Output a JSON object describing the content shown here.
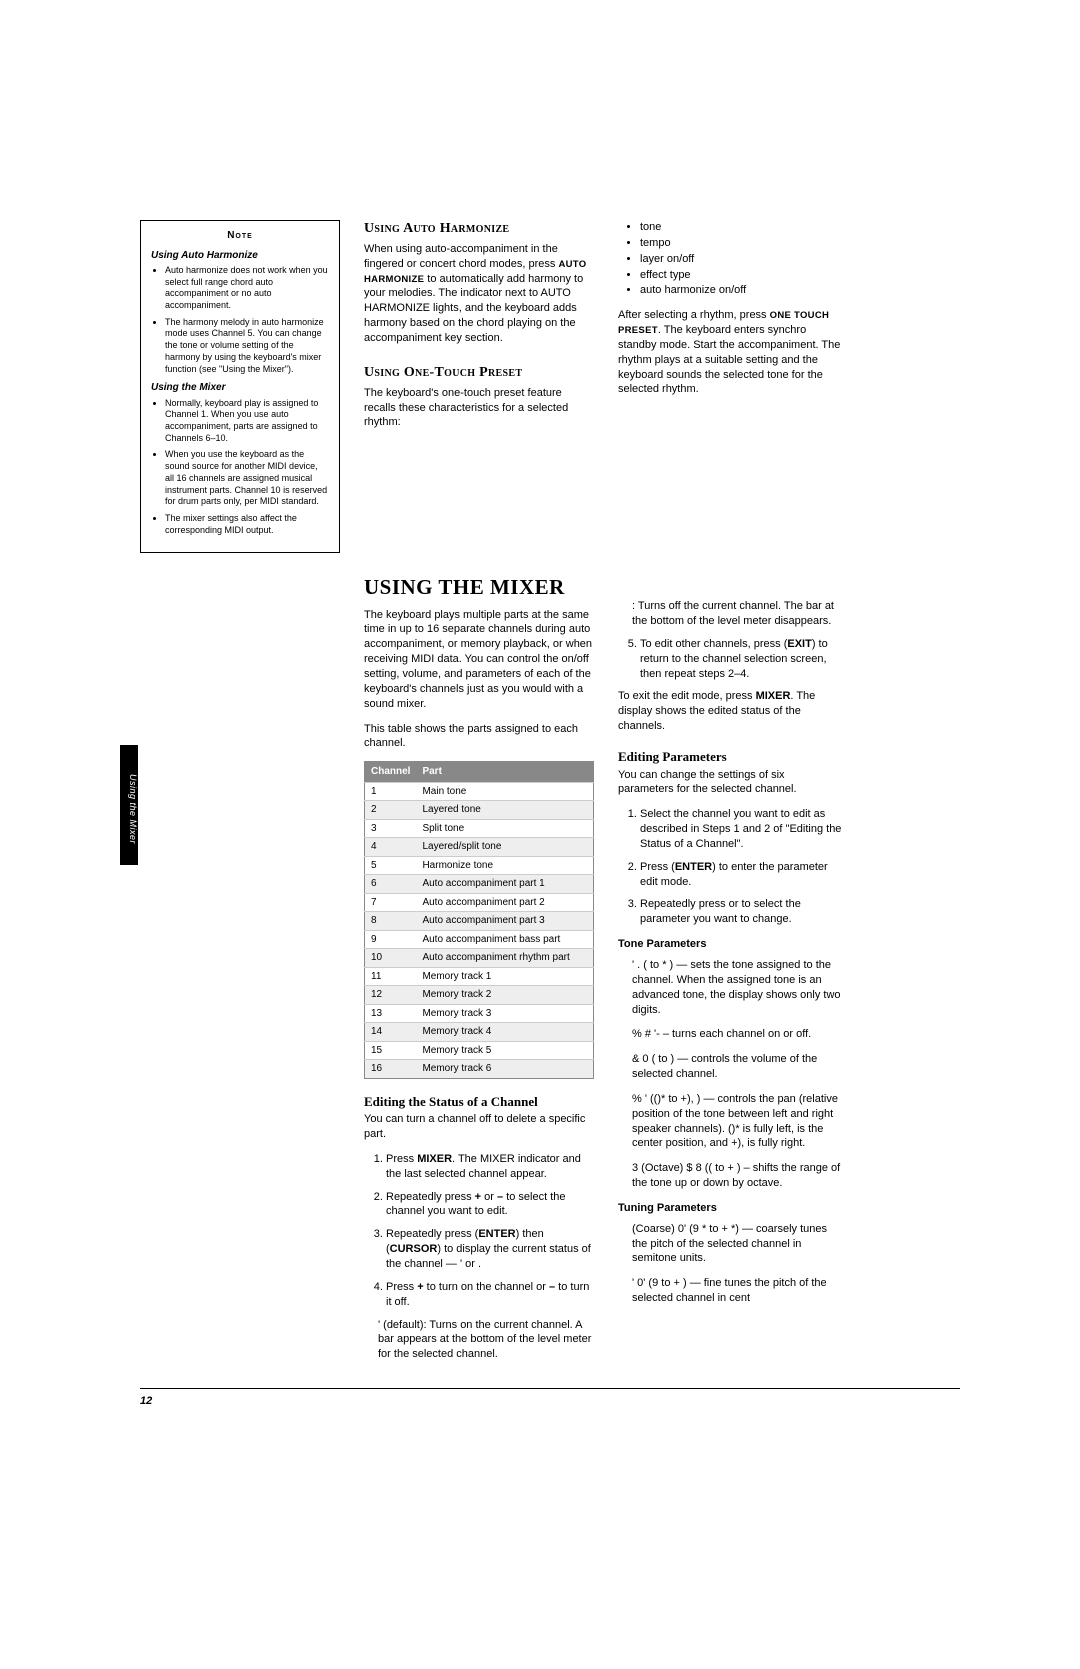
{
  "sideTab": "Using the Mixer",
  "pageNumber": "12",
  "noteBox": {
    "title": "Note",
    "sub1": "Using Auto Harmonize",
    "items1": [
      "Auto harmonize does not work when you select full range chord auto accompaniment or no auto accompaniment.",
      "The harmony melody in auto harmonize mode uses Channel 5. You can change the tone or volume setting of the harmony by using the keyboard's mixer function (see \"Using the Mixer\")."
    ],
    "sub2": "Using the Mixer",
    "items2": [
      "Normally, keyboard play is assigned to Channel 1. When you use auto accompaniment, parts are assigned to Channels 6–10.",
      "When you use the keyboard as the sound source for another MIDI device, all 16 channels are assigned musical instrument parts. Channel 10 is reserved for drum parts only, per MIDI standard.",
      "The mixer settings also affect the corresponding MIDI output."
    ]
  },
  "col2": {
    "h1": "Using Auto Harmonize",
    "p1a": "When using auto-accompaniment in the fingered or concert chord modes, press ",
    "p1key": "AUTO HARMONIZE",
    "p1b": " to automatically add harmony to your melodies. The indicator next to AUTO HARMONIZE lights, and the keyboard adds harmony based on the chord playing on the accompaniment key section.",
    "h2": "Using One-Touch Preset",
    "p2": "The keyboard's one-touch preset feature recalls these characteristics for a selected rhythm:",
    "hBig": "USING THE MIXER",
    "p3": "The keyboard plays multiple parts at the same time in up to 16 separate channels during auto accompaniment, or memory playback, or when receiving MIDI data. You can control the on/off setting, volume, and parameters of each of the keyboard's channels just as you would with a sound mixer.",
    "p4": "This table shows the parts assigned to each channel.",
    "table": {
      "headers": [
        "Channel",
        "Part"
      ],
      "rows": [
        [
          "1",
          "Main tone"
        ],
        [
          "2",
          "Layered tone"
        ],
        [
          "3",
          "Split tone"
        ],
        [
          "4",
          "Layered/split tone"
        ],
        [
          "5",
          "Harmonize tone"
        ],
        [
          "6",
          "Auto accompaniment part 1"
        ],
        [
          "7",
          "Auto accompaniment part 2"
        ],
        [
          "8",
          "Auto accompaniment part 3"
        ],
        [
          "9",
          "Auto accompaniment bass part"
        ],
        [
          "10",
          "Auto accompaniment rhythm part"
        ],
        [
          "11",
          "Memory track 1"
        ],
        [
          "12",
          "Memory track 2"
        ],
        [
          "13",
          "Memory track 3"
        ],
        [
          "14",
          "Memory track 4"
        ],
        [
          "15",
          "Memory track 5"
        ],
        [
          "16",
          "Memory track 6"
        ]
      ]
    },
    "hSub": "Editing the Status of a Channel",
    "p5": "You can turn a channel off to delete a specific part.",
    "steps": [
      "Press <b>MIXER</b>. The MIXER indicator and the last selected channel appear.",
      "Repeatedly press <b>+</b> or <b>–</b> to select the channel you want to edit.",
      "Repeatedly press  (<b>ENTER</b>) then  (<b>CURSOR</b>) to display the current status of the channel — ' or .",
      "Press <b>+</b> to turn on the channel or <b>–</b> to turn it off."
    ],
    "p6": "' (default): Turns on the current channel. A bar appears at the bottom of the level meter for the selected channel."
  },
  "col3": {
    "bullets": [
      "tone",
      "tempo",
      "layer on/off",
      "effect type",
      "auto harmonize on/off"
    ],
    "p1a": "After selecting a rhythm, press ",
    "p1key": "ONE TOUCH PRESET",
    "p1b": ". The keyboard enters synchro standby mode. Start the accompaniment. The rhythm plays at a suitable setting and the keyboard sounds the selected tone for the selected rhythm.",
    "p2": ": Turns off the current channel. The bar at the bottom of the level meter disappears.",
    "step5": "To edit other channels, press  (<b>EXIT</b>) to return to the channel selection screen, then repeat steps 2–4.",
    "p3": "To exit the edit mode, press <b>MIXER</b>. The display shows the edited status of the channels.",
    "hSub": "Editing Parameters",
    "p4": "You can change the settings of six parameters for the selected channel.",
    "steps": [
      "Select the channel you want to edit as described in Steps 1 and 2 of \"Editing the Status of a Channel\".",
      "Press  (<b>ENTER</b>) to enter the parameter edit mode.",
      "Repeatedly press  or  to select the parameter you want to change."
    ],
    "toneH": "Tone Parameters",
    "tp1": "' . ( to * ) — sets the tone assigned to the channel. When the assigned tone is an advanced tone, the display shows only two digits.",
    "tp2": "% # '- – turns each channel on or off.",
    "tp3": "& 0 ( to ) — controls the volume of the selected channel.",
    "tp4": "% ' (()* to +), ) — controls the pan (relative position of the tone between left and right speaker channels). ()* is fully left,  is the center position, and +), is fully right.",
    "tp5": "3 (Octave) $ 8 (( to + ) – shifts the range of the tone up or down by octave.",
    "tuneH": "Tuning Parameters",
    "tu1": "(Coarse) 0' (9 * to + *) — coarsely tunes the pitch of the selected channel in semitone units.",
    "tu2": "' 0' (9 to + ) — fine tunes the pitch of the selected channel in cent"
  }
}
